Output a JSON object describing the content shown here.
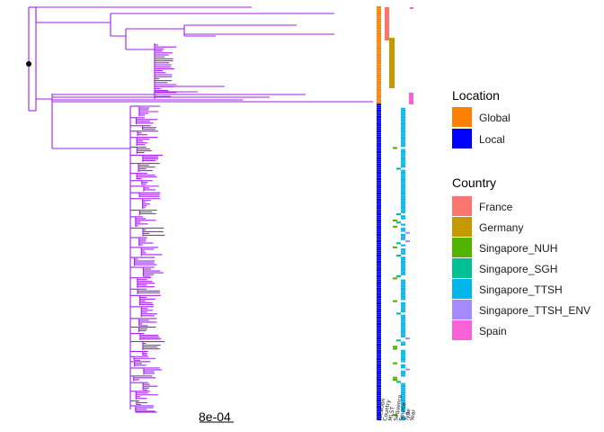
{
  "colors": {
    "tree": "#A020F0",
    "root_node": "#000000",
    "location_global": "#FF7F00",
    "location_local": "#0000FF",
    "country_france": "#F8766D",
    "country_germany": "#C49A00",
    "country_singapore_nuh": "#53B400",
    "country_singapore_sgh": "#00C094",
    "country_singapore_ttsh": "#00B6EB",
    "country_singapore_ttsh_env": "#A58AFF",
    "country_spain": "#FB61D7"
  },
  "scale_bar": {
    "label": "8e-04"
  },
  "heatmap_column_labels": [
    "Location",
    "Country",
    "MLST",
    "Sequence",
    "Source",
    "Type",
    "Year"
  ],
  "legends": [
    {
      "title": "Location",
      "items": [
        {
          "label": "Global",
          "color": "#FF7F00"
        },
        {
          "label": "Local",
          "color": "#0000FF"
        }
      ]
    },
    {
      "title": "Country",
      "items": [
        {
          "label": "France",
          "color": "#F8766D"
        },
        {
          "label": "Germany",
          "color": "#C49A00"
        },
        {
          "label": "Singapore_NUH",
          "color": "#53B400"
        },
        {
          "label": "Singapore_SGH",
          "color": "#00C094"
        },
        {
          "label": "Singapore_TTSH",
          "color": "#00B6EB"
        },
        {
          "label": "Singapore_TTSH_ENV",
          "color": "#A58AFF"
        },
        {
          "label": "Spain",
          "color": "#FB61D7"
        }
      ]
    }
  ]
}
